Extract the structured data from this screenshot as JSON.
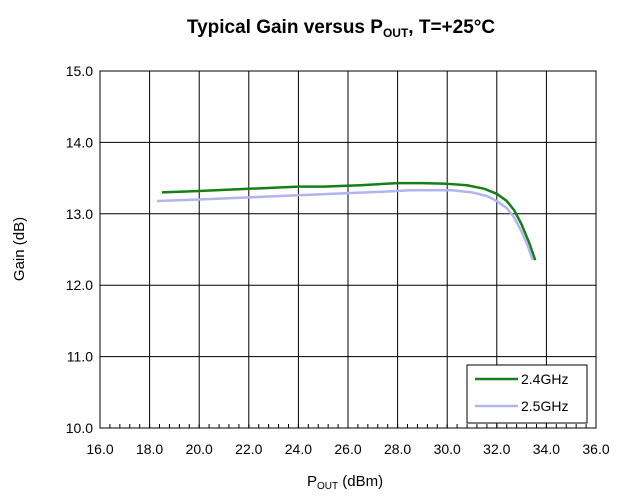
{
  "chart_data": {
    "type": "line",
    "title": {
      "prefix": "Typical Gain versus P",
      "sub": "OUT",
      "suffix": ", T=+25°C"
    },
    "xlabel": {
      "main": "P",
      "sub": "OUT",
      "suffix": " (dBm)"
    },
    "ylabel": "Gain (dB)",
    "xlim": [
      16,
      36
    ],
    "ylim": [
      10,
      15
    ],
    "x_ticks": [
      "16.0",
      "18.0",
      "20.0",
      "22.0",
      "24.0",
      "26.0",
      "28.0",
      "30.0",
      "32.0",
      "34.0",
      "36.0"
    ],
    "y_ticks": [
      "10.0",
      "11.0",
      "12.0",
      "13.0",
      "14.0",
      "15.0"
    ],
    "grid": true,
    "legend_position": "bottom-right",
    "series": [
      {
        "name": "2.4GHz",
        "color": "#168016",
        "points": [
          [
            18.5,
            13.3
          ],
          [
            20.0,
            13.32
          ],
          [
            22.0,
            13.35
          ],
          [
            24.0,
            13.38
          ],
          [
            25.0,
            13.38
          ],
          [
            26.5,
            13.4
          ],
          [
            28.0,
            13.43
          ],
          [
            29.0,
            13.43
          ],
          [
            30.0,
            13.42
          ],
          [
            30.8,
            13.4
          ],
          [
            31.5,
            13.35
          ],
          [
            32.0,
            13.28
          ],
          [
            32.4,
            13.18
          ],
          [
            32.7,
            13.05
          ],
          [
            33.0,
            12.85
          ],
          [
            33.3,
            12.6
          ],
          [
            33.55,
            12.35
          ]
        ]
      },
      {
        "name": "2.5GHz",
        "color": "#b3b3f0",
        "points": [
          [
            18.3,
            13.18
          ],
          [
            20.0,
            13.2
          ],
          [
            22.0,
            13.23
          ],
          [
            24.0,
            13.26
          ],
          [
            26.0,
            13.29
          ],
          [
            27.5,
            13.31
          ],
          [
            28.5,
            13.33
          ],
          [
            29.5,
            13.33
          ],
          [
            30.2,
            13.33
          ],
          [
            31.0,
            13.3
          ],
          [
            31.6,
            13.25
          ],
          [
            32.0,
            13.18
          ],
          [
            32.4,
            13.08
          ],
          [
            32.7,
            12.95
          ],
          [
            33.0,
            12.75
          ],
          [
            33.25,
            12.55
          ],
          [
            33.45,
            12.35
          ]
        ]
      }
    ]
  }
}
